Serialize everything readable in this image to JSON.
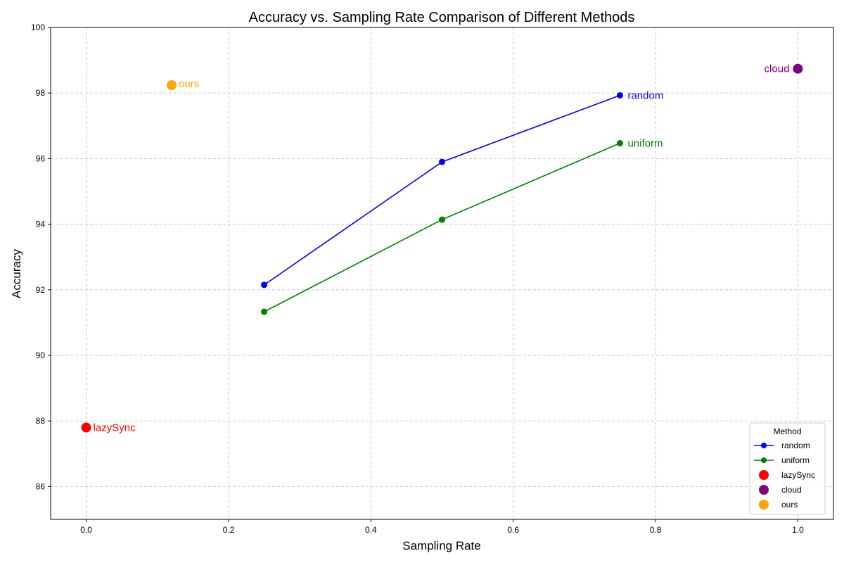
{
  "chart_data": {
    "type": "line",
    "title": "Accuracy vs. Sampling Rate Comparison of Different Methods",
    "xlabel": "Sampling Rate",
    "ylabel": "Accuracy",
    "xlim": [
      -0.05,
      1.05
    ],
    "ylim": [
      85,
      100
    ],
    "x_ticks": [
      0.0,
      0.2,
      0.4,
      0.6,
      0.8,
      1.0
    ],
    "x_tick_labels": [
      "0.0",
      "0.2",
      "0.4",
      "0.6",
      "0.8",
      "1.0"
    ],
    "y_ticks": [
      86,
      88,
      90,
      92,
      94,
      96,
      98,
      100
    ],
    "y_tick_labels": [
      "86",
      "88",
      "90",
      "92",
      "94",
      "96",
      "98",
      "100"
    ],
    "grid": true,
    "legend": {
      "title": "Method",
      "position": "lower-right"
    },
    "series": [
      {
        "name": "random",
        "kind": "line",
        "color": "#0000ff",
        "x": [
          0.25,
          0.5,
          0.75
        ],
        "y": [
          92.15,
          95.9,
          97.93
        ],
        "label": "random"
      },
      {
        "name": "uniform",
        "kind": "line",
        "color": "#008000",
        "x": [
          0.25,
          0.5,
          0.75
        ],
        "y": [
          91.33,
          94.14,
          96.47
        ],
        "label": "uniform"
      },
      {
        "name": "lazySync",
        "kind": "scatter",
        "color": "#ff0000",
        "x": [
          0.0
        ],
        "y": [
          87.8
        ],
        "label": "lazySync"
      },
      {
        "name": "cloud",
        "kind": "scatter",
        "color": "#800080",
        "x": [
          1.0
        ],
        "y": [
          98.74
        ],
        "label": "cloud"
      },
      {
        "name": "ours",
        "kind": "scatter",
        "color": "#ffa500",
        "x": [
          0.12
        ],
        "y": [
          98.24
        ],
        "label": "ours"
      }
    ]
  }
}
